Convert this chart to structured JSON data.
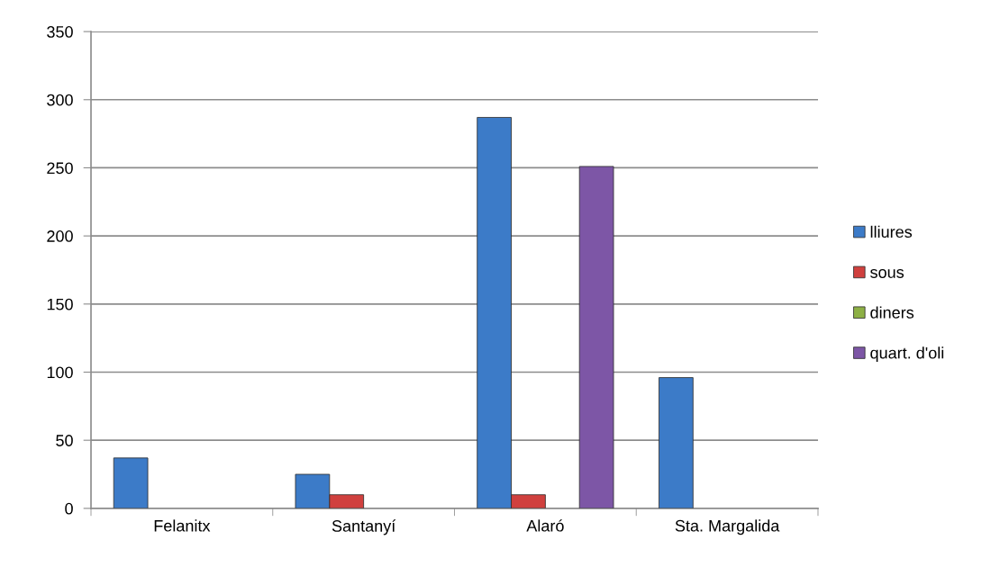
{
  "chart_data": {
    "type": "bar",
    "categories": [
      "Felanitx",
      "Santanyí",
      "Alaró",
      "Sta. Margalida"
    ],
    "series": [
      {
        "name": "lliures",
        "color": "#3c7bc8",
        "values": [
          37,
          25,
          287,
          96
        ]
      },
      {
        "name": "sous",
        "color": "#d0403e",
        "values": [
          null,
          10,
          10,
          null
        ]
      },
      {
        "name": "diners",
        "color": "#8db045",
        "values": [
          null,
          null,
          null,
          null
        ]
      },
      {
        "name": "quart. d'oli",
        "color": "#7d56a6",
        "values": [
          null,
          null,
          251,
          null
        ]
      }
    ],
    "ylim": [
      0,
      350
    ],
    "yticks": [
      0,
      50,
      100,
      150,
      200,
      250,
      300,
      350
    ],
    "grid": "y",
    "legend": "right"
  }
}
